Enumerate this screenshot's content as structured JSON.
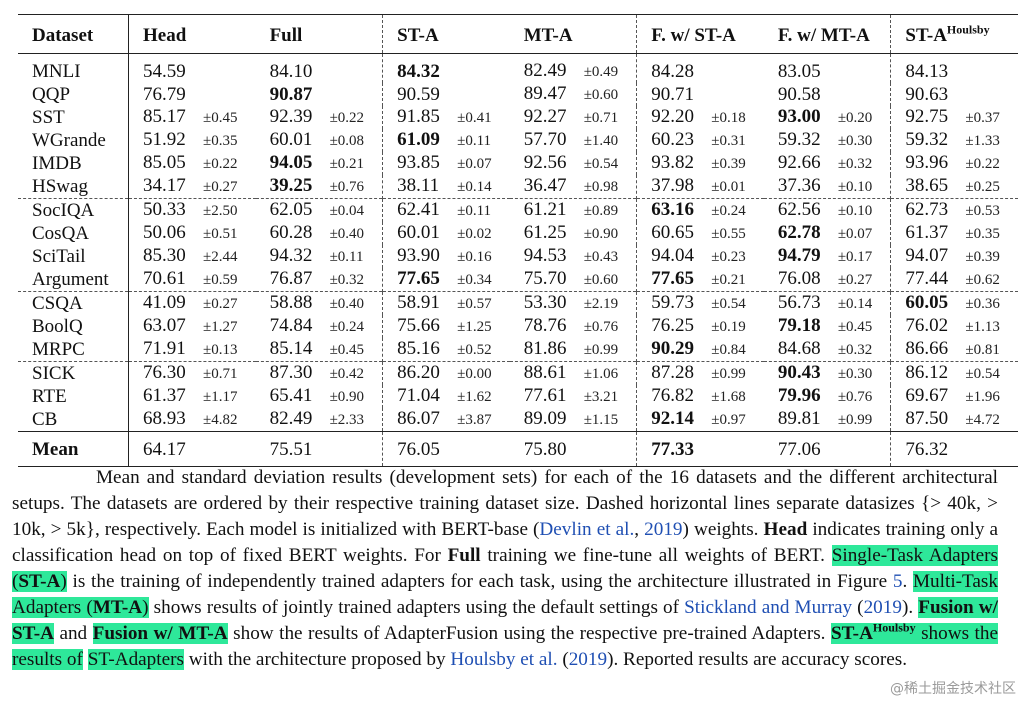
{
  "table": {
    "columns": [
      "Dataset",
      "Head",
      "Full",
      "ST-A",
      "MT-A",
      "F. w/ ST-A",
      "F. w/ MT-A",
      "ST-A"
    ],
    "last_column_superscript": "Houlsby",
    "rows": [
      {
        "name": "MNLI",
        "cells": [
          [
            "54.59",
            ""
          ],
          [
            "84.10",
            ""
          ],
          [
            "84.32",
            ""
          ],
          [
            "82.49",
            "±0.49"
          ],
          [
            "84.28",
            ""
          ],
          [
            "83.05",
            ""
          ],
          [
            "84.13",
            ""
          ]
        ],
        "bold": [
          2
        ]
      },
      {
        "name": "QQP",
        "cells": [
          [
            "76.79",
            ""
          ],
          [
            "90.87",
            ""
          ],
          [
            "90.59",
            ""
          ],
          [
            "89.47",
            "±0.60"
          ],
          [
            "90.71",
            ""
          ],
          [
            "90.58",
            ""
          ],
          [
            "90.63",
            ""
          ]
        ],
        "bold": [
          1
        ]
      },
      {
        "name": "SST",
        "cells": [
          [
            "85.17",
            "±0.45"
          ],
          [
            "92.39",
            "±0.22"
          ],
          [
            "91.85",
            "±0.41"
          ],
          [
            "92.27",
            "±0.71"
          ],
          [
            "92.20",
            "±0.18"
          ],
          [
            "93.00",
            "±0.20"
          ],
          [
            "92.75",
            "±0.37"
          ]
        ],
        "bold": [
          5
        ]
      },
      {
        "name": "WGrande",
        "cells": [
          [
            "51.92",
            "±0.35"
          ],
          [
            "60.01",
            "±0.08"
          ],
          [
            "61.09",
            "±0.11"
          ],
          [
            "57.70",
            "±1.40"
          ],
          [
            "60.23",
            "±0.31"
          ],
          [
            "59.32",
            "±0.30"
          ],
          [
            "59.32",
            "±1.33"
          ]
        ],
        "bold": [
          2
        ]
      },
      {
        "name": "IMDB",
        "cells": [
          [
            "85.05",
            "±0.22"
          ],
          [
            "94.05",
            "±0.21"
          ],
          [
            "93.85",
            "±0.07"
          ],
          [
            "92.56",
            "±0.54"
          ],
          [
            "93.82",
            "±0.39"
          ],
          [
            "92.66",
            "±0.32"
          ],
          [
            "93.96",
            "±0.22"
          ]
        ],
        "bold": [
          1
        ]
      },
      {
        "name": "HSwag",
        "cells": [
          [
            "34.17",
            "±0.27"
          ],
          [
            "39.25",
            "±0.76"
          ],
          [
            "38.11",
            "±0.14"
          ],
          [
            "36.47",
            "±0.98"
          ],
          [
            "37.98",
            "±0.01"
          ],
          [
            "37.36",
            "±0.10"
          ],
          [
            "38.65",
            "±0.25"
          ]
        ],
        "bold": [
          1
        ]
      },
      {
        "name": "SocIQA",
        "cells": [
          [
            "50.33",
            "±2.50"
          ],
          [
            "62.05",
            "±0.04"
          ],
          [
            "62.41",
            "±0.11"
          ],
          [
            "61.21",
            "±0.89"
          ],
          [
            "63.16",
            "±0.24"
          ],
          [
            "62.56",
            "±0.10"
          ],
          [
            "62.73",
            "±0.53"
          ]
        ],
        "bold": [
          4
        ]
      },
      {
        "name": "CosQA",
        "cells": [
          [
            "50.06",
            "±0.51"
          ],
          [
            "60.28",
            "±0.40"
          ],
          [
            "60.01",
            "±0.02"
          ],
          [
            "61.25",
            "±0.90"
          ],
          [
            "60.65",
            "±0.55"
          ],
          [
            "62.78",
            "±0.07"
          ],
          [
            "61.37",
            "±0.35"
          ]
        ],
        "bold": [
          5
        ]
      },
      {
        "name": "SciTail",
        "cells": [
          [
            "85.30",
            "±2.44"
          ],
          [
            "94.32",
            "±0.11"
          ],
          [
            "93.90",
            "±0.16"
          ],
          [
            "94.53",
            "±0.43"
          ],
          [
            "94.04",
            "±0.23"
          ],
          [
            "94.79",
            "±0.17"
          ],
          [
            "94.07",
            "±0.39"
          ]
        ],
        "bold": [
          5
        ]
      },
      {
        "name": "Argument",
        "cells": [
          [
            "70.61",
            "±0.59"
          ],
          [
            "76.87",
            "±0.32"
          ],
          [
            "77.65",
            "±0.34"
          ],
          [
            "75.70",
            "±0.60"
          ],
          [
            "77.65",
            "±0.21"
          ],
          [
            "76.08",
            "±0.27"
          ],
          [
            "77.44",
            "±0.62"
          ]
        ],
        "bold": [
          2,
          4
        ]
      },
      {
        "name": "CSQA",
        "cells": [
          [
            "41.09",
            "±0.27"
          ],
          [
            "58.88",
            "±0.40"
          ],
          [
            "58.91",
            "±0.57"
          ],
          [
            "53.30",
            "±2.19"
          ],
          [
            "59.73",
            "±0.54"
          ],
          [
            "56.73",
            "±0.14"
          ],
          [
            "60.05",
            "±0.36"
          ]
        ],
        "bold": [
          6
        ]
      },
      {
        "name": "BoolQ",
        "cells": [
          [
            "63.07",
            "±1.27"
          ],
          [
            "74.84",
            "±0.24"
          ],
          [
            "75.66",
            "±1.25"
          ],
          [
            "78.76",
            "±0.76"
          ],
          [
            "76.25",
            "±0.19"
          ],
          [
            "79.18",
            "±0.45"
          ],
          [
            "76.02",
            "±1.13"
          ]
        ],
        "bold": [
          5
        ]
      },
      {
        "name": "MRPC",
        "cells": [
          [
            "71.91",
            "±0.13"
          ],
          [
            "85.14",
            "±0.45"
          ],
          [
            "85.16",
            "±0.52"
          ],
          [
            "81.86",
            "±0.99"
          ],
          [
            "90.29",
            "±0.84"
          ],
          [
            "84.68",
            "±0.32"
          ],
          [
            "86.66",
            "±0.81"
          ]
        ],
        "bold": [
          4
        ]
      },
      {
        "name": "SICK",
        "cells": [
          [
            "76.30",
            "±0.71"
          ],
          [
            "87.30",
            "±0.42"
          ],
          [
            "86.20",
            "±0.00"
          ],
          [
            "88.61",
            "±1.06"
          ],
          [
            "87.28",
            "±0.99"
          ],
          [
            "90.43",
            "±0.30"
          ],
          [
            "86.12",
            "±0.54"
          ]
        ],
        "bold": [
          5
        ]
      },
      {
        "name": "RTE",
        "cells": [
          [
            "61.37",
            "±1.17"
          ],
          [
            "65.41",
            "±0.90"
          ],
          [
            "71.04",
            "±1.62"
          ],
          [
            "77.61",
            "±3.21"
          ],
          [
            "76.82",
            "±1.68"
          ],
          [
            "79.96",
            "±0.76"
          ],
          [
            "69.67",
            "±1.96"
          ]
        ],
        "bold": [
          5
        ]
      },
      {
        "name": "CB",
        "cells": [
          [
            "68.93",
            "±4.82"
          ],
          [
            "82.49",
            "±2.33"
          ],
          [
            "86.07",
            "±3.87"
          ],
          [
            "89.09",
            "±1.15"
          ],
          [
            "92.14",
            "±0.97"
          ],
          [
            "89.81",
            "±0.99"
          ],
          [
            "87.50",
            "±4.72"
          ]
        ],
        "bold": [
          4
        ]
      }
    ],
    "mean": {
      "name": "Mean",
      "cells": [
        [
          "64.17",
          ""
        ],
        [
          "75.51",
          ""
        ],
        [
          "76.05",
          ""
        ],
        [
          "75.80",
          ""
        ],
        [
          "77.33",
          ""
        ],
        [
          "77.06",
          ""
        ],
        [
          "76.32",
          ""
        ]
      ],
      "bold": [
        4
      ]
    },
    "dash_before_rows": [
      6,
      10,
      13
    ]
  },
  "caption": {
    "t1": "Mean and standard deviation results (development sets) for each of the 16 datasets and the different architectural setups. The datasets are ordered by their respective training dataset size. Dashed horizontal lines separate datasizes ",
    "math": "{> 40k, > 10k, > 5k}",
    "t2": ", respectively. Each model is initialized with BERT-base (",
    "link1": "Devlin et al.",
    "t3": ", ",
    "link1_year": "2019",
    "t4": ") weights. ",
    "b_head": "Head",
    "t5": " indicates training only a classification head on top of fixed BERT weights. For ",
    "b_full": "Full",
    "t6": " training we fine-tune all weights of BERT. ",
    "hl_sta_pre": "Single-Task Adapters (",
    "hl_sta_b": "ST-A",
    "hl_sta_post": ")",
    "t7": " is the training of independently trained adapters for each task, using the architecture illustrated in Figure ",
    "fig": "5",
    "t8": ". ",
    "hl_mta_pre": "Multi-Task Adapters (",
    "hl_mta_b": "MT-A",
    "hl_mta_post": ")",
    "t9": " shows results of jointly trained adapters using the default settings of ",
    "link2": "Stickland and Murray",
    "t10": " (",
    "link2_year": "2019",
    "t11": "). ",
    "hl_fst": "Fusion w/ ST-A",
    "t12": " and ",
    "hl_fmt": "Fusion w/ MT-A",
    "t13": " show the results of AdapterFusion using the respective pre-trained Adapters. ",
    "hl_h_b": "ST-A",
    "hl_h_sup": "Houlsby",
    "hl_h_post": " shows the results of",
    "t14": " ",
    "hl_sta2": "ST-Adapters",
    "t15": " with the architecture proposed by ",
    "link3": "Houlsby et al.",
    "t16": " (",
    "link3_year": "2019",
    "t17": "). Reported results are accuracy scores."
  },
  "watermark": "@稀土掘金技术社区",
  "colors": {
    "highlight": "#2ee89a",
    "link": "#1f4fb3"
  }
}
